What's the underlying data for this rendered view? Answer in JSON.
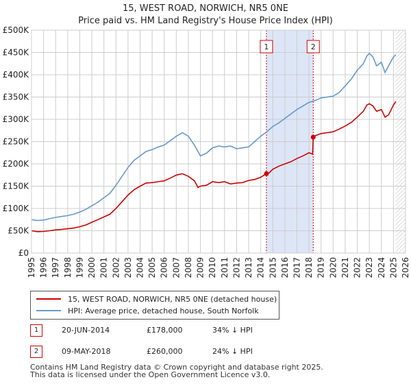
{
  "chart_data": {
    "type": "line",
    "title": "15, WEST ROAD, NORWICH, NR5 0NE",
    "subtitle": "Price paid vs. HM Land Registry's House Price Index (HPI)",
    "xlabel": "",
    "ylabel": "",
    "xlim": [
      1995,
      2026
    ],
    "ylim": [
      0,
      500000
    ],
    "x_ticks": [
      1995,
      1996,
      1997,
      1998,
      1999,
      2000,
      2001,
      2002,
      2003,
      2004,
      2005,
      2006,
      2007,
      2008,
      2009,
      2010,
      2011,
      2012,
      2013,
      2014,
      2015,
      2016,
      2017,
      2018,
      2019,
      2020,
      2021,
      2022,
      2023,
      2024,
      2025,
      2026
    ],
    "y_ticks": [
      0,
      50000,
      100000,
      150000,
      200000,
      250000,
      300000,
      350000,
      400000,
      450000,
      500000
    ],
    "y_tick_labels": [
      "£0",
      "£50K",
      "£100K",
      "£150K",
      "£200K",
      "£250K",
      "£300K",
      "£350K",
      "£400K",
      "£450K",
      "£500K"
    ],
    "grid": true,
    "forecast_start": 2025.17,
    "series": [
      {
        "name": "15, WEST ROAD, NORWICH, NR5 0NE (detached house)",
        "color": "#cc0000",
        "x": [
          1995.0,
          1995.5,
          1996.0,
          1996.5,
          1997.0,
          1997.5,
          1998.0,
          1998.5,
          1999.0,
          1999.5,
          2000.0,
          2000.5,
          2001.0,
          2001.5,
          2002.0,
          2002.5,
          2003.0,
          2003.5,
          2004.0,
          2004.5,
          2005.0,
          2005.5,
          2006.0,
          2006.5,
          2007.0,
          2007.5,
          2008.0,
          2008.5,
          2008.8,
          2009.0,
          2009.5,
          2010.0,
          2010.5,
          2011.0,
          2011.5,
          2012.0,
          2012.5,
          2013.0,
          2013.5,
          2014.0,
          2014.47,
          2014.7,
          2015.0,
          2015.5,
          2016.0,
          2016.5,
          2017.0,
          2017.5,
          2018.0,
          2018.3,
          2018.35,
          2018.5,
          2019.0,
          2019.5,
          2020.0,
          2020.5,
          2021.0,
          2021.5,
          2022.0,
          2022.5,
          2022.8,
          2023.0,
          2023.3,
          2023.6,
          2024.0,
          2024.3,
          2024.6,
          2025.0,
          2025.2
        ],
        "values": [
          50000,
          48000,
          48500,
          50000,
          52000,
          53000,
          54500,
          56000,
          59000,
          63000,
          69000,
          75000,
          81000,
          87000,
          100000,
          115000,
          130000,
          142000,
          150000,
          157000,
          158000,
          160000,
          162000,
          168000,
          175000,
          178000,
          172000,
          162000,
          147000,
          150000,
          152000,
          160000,
          158000,
          160000,
          155000,
          157000,
          158000,
          163000,
          165000,
          170000,
          178000,
          180000,
          188000,
          195000,
          200000,
          205000,
          212000,
          218000,
          225000,
          222000,
          260000,
          263000,
          268000,
          270000,
          272000,
          278000,
          285000,
          293000,
          305000,
          318000,
          332000,
          335000,
          330000,
          318000,
          322000,
          305000,
          310000,
          332000,
          340000
        ]
      },
      {
        "name": "HPI: Average price, detached house, South Norfolk",
        "color": "#6699cc",
        "x": [
          1995.0,
          1995.5,
          1996.0,
          1996.5,
          1997.0,
          1997.5,
          1998.0,
          1998.5,
          1999.0,
          1999.5,
          2000.0,
          2000.5,
          2001.0,
          2001.5,
          2002.0,
          2002.5,
          2003.0,
          2003.5,
          2004.0,
          2004.5,
          2005.0,
          2005.5,
          2006.0,
          2006.5,
          2007.0,
          2007.5,
          2008.0,
          2008.5,
          2009.0,
          2009.5,
          2010.0,
          2010.5,
          2011.0,
          2011.5,
          2012.0,
          2012.5,
          2013.0,
          2013.5,
          2014.0,
          2014.5,
          2015.0,
          2015.5,
          2016.0,
          2016.5,
          2017.0,
          2017.5,
          2018.0,
          2018.5,
          2019.0,
          2019.5,
          2020.0,
          2020.5,
          2021.0,
          2021.5,
          2022.0,
          2022.5,
          2022.8,
          2023.0,
          2023.3,
          2023.6,
          2024.0,
          2024.3,
          2024.6,
          2025.0,
          2025.2
        ],
        "values": [
          75000,
          73000,
          74000,
          77000,
          80000,
          82000,
          84000,
          87000,
          92000,
          98000,
          106000,
          114000,
          124000,
          134000,
          152000,
          172000,
          192000,
          208000,
          218000,
          228000,
          232000,
          238000,
          242000,
          252000,
          262000,
          270000,
          262000,
          242000,
          218000,
          224000,
          236000,
          240000,
          238000,
          240000,
          234000,
          236000,
          238000,
          250000,
          262000,
          272000,
          284000,
          292000,
          302000,
          312000,
          322000,
          330000,
          338000,
          342000,
          348000,
          350000,
          352000,
          360000,
          375000,
          390000,
          410000,
          425000,
          442000,
          448000,
          440000,
          420000,
          428000,
          405000,
          420000,
          440000,
          445000
        ]
      }
    ],
    "sales": [
      {
        "label": "1",
        "x": 2014.47,
        "value": 178000,
        "date": "20-JUN-2014",
        "price": "£178,000",
        "hpi_diff": "34% ↓ HPI"
      },
      {
        "label": "2",
        "x": 2018.35,
        "value": 260000,
        "date": "09-MAY-2018",
        "price": "£260,000",
        "hpi_diff": "24% ↓ HPI"
      }
    ]
  },
  "legend": {
    "property_label": "15, WEST ROAD, NORWICH, NR5 0NE (detached house)",
    "hpi_label": "HPI: Average price, detached house, South Norfolk"
  },
  "footer": {
    "line1": "Contains HM Land Registry data © Crown copyright and database right 2025.",
    "line2": "This data is licensed under the Open Government Licence v3.0."
  },
  "colors": {
    "property": "#cc0000",
    "hpi": "#6699cc",
    "highlight": "#dde6f7",
    "grid": "#cccccc"
  }
}
